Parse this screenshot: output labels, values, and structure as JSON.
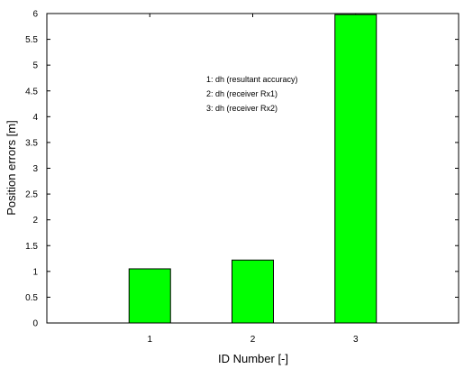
{
  "chart_data": {
    "type": "bar",
    "categories": [
      "1",
      "2",
      "3"
    ],
    "values": [
      1.05,
      1.22,
      5.98
    ],
    "xlabel": "ID Number [-]",
    "ylabel": "Position errors [m]",
    "ylim": [
      0,
      6
    ],
    "yticks": [
      "0",
      "0.5",
      "1",
      "1.5",
      "2",
      "2.5",
      "3",
      "3.5",
      "4",
      "4.5",
      "5",
      "5.5",
      "6"
    ],
    "annotations": [
      "1: dh (resultant accuracy)",
      "2: dh (receiver Rx1)",
      "3: dh (receiver Rx2)"
    ],
    "bar_color": "#00ff00",
    "grid": false
  }
}
